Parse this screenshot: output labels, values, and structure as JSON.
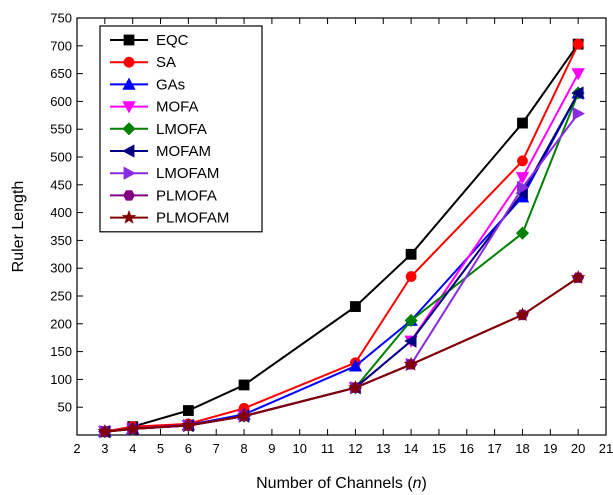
{
  "chart_data": {
    "type": "line",
    "title": "",
    "xlabel": "Number of Channels (",
    "xlabel_var": "n",
    "xlabel_end": ")",
    "ylabel": "Ruler Length",
    "xlim": [
      2,
      21
    ],
    "ylim": [
      0,
      750
    ],
    "xticks": [
      2,
      3,
      4,
      5,
      6,
      7,
      8,
      9,
      10,
      11,
      12,
      13,
      14,
      15,
      16,
      17,
      18,
      19,
      20,
      21
    ],
    "yticks": [
      50,
      100,
      150,
      200,
      250,
      300,
      350,
      400,
      450,
      500,
      550,
      600,
      650,
      700,
      750
    ],
    "grid": false,
    "legend_position": "top-left",
    "series": [
      {
        "name": "EQC",
        "color": "#000000",
        "marker": "square",
        "x": [
          3,
          4,
          6,
          8,
          12,
          14,
          18,
          20
        ],
        "y": [
          6,
          15,
          44,
          90,
          231,
          325,
          561,
          703
        ]
      },
      {
        "name": "SA",
        "color": "#ff0000",
        "marker": "circle",
        "x": [
          3,
          4,
          6,
          8,
          12,
          14,
          18,
          20
        ],
        "y": [
          6,
          15,
          20,
          48,
          130,
          285,
          493,
          703
        ]
      },
      {
        "name": "GAs",
        "color": "#0000ff",
        "marker": "triangle-up",
        "x": [
          3,
          4,
          6,
          8,
          12,
          14,
          18,
          20
        ],
        "y": [
          6,
          11,
          18,
          37,
          124,
          206,
          428,
          615
        ]
      },
      {
        "name": "MOFA",
        "color": "#ff00ff",
        "marker": "triangle-down",
        "x": [
          3,
          4,
          6,
          8,
          12,
          14,
          18,
          20
        ],
        "y": [
          6,
          11,
          17,
          34,
          85,
          169,
          463,
          650
        ]
      },
      {
        "name": "LMOFA",
        "color": "#008000",
        "marker": "diamond",
        "x": [
          3,
          4,
          6,
          8,
          12,
          14,
          18,
          20
        ],
        "y": [
          6,
          11,
          17,
          34,
          85,
          206,
          363,
          615
        ]
      },
      {
        "name": "MOFAM",
        "color": "#000080",
        "marker": "triangle-left",
        "x": [
          3,
          4,
          6,
          8,
          12,
          14,
          18,
          20
        ],
        "y": [
          6,
          11,
          17,
          34,
          85,
          169,
          435,
          615
        ]
      },
      {
        "name": "LMOFAM",
        "color": "#8a2be2",
        "marker": "triangle-right",
        "x": [
          3,
          4,
          6,
          8,
          12,
          14,
          18,
          20
        ],
        "y": [
          6,
          11,
          17,
          34,
          85,
          127,
          445,
          578
        ]
      },
      {
        "name": "PLMOFA",
        "color": "#800080",
        "marker": "hexagon",
        "x": [
          3,
          4,
          6,
          8,
          12,
          14,
          18,
          20
        ],
        "y": [
          6,
          11,
          17,
          34,
          85,
          127,
          216,
          283
        ]
      },
      {
        "name": "PLMOFAM",
        "color": "#800000",
        "marker": "star",
        "x": [
          3,
          4,
          6,
          8,
          12,
          14,
          18,
          20
        ],
        "y": [
          6,
          11,
          17,
          34,
          85,
          127,
          216,
          283
        ]
      }
    ]
  }
}
